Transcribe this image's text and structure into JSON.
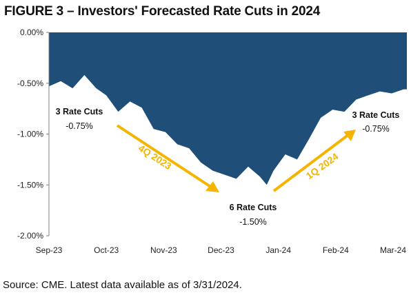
{
  "title": "FIGURE 3 – Investors' Forecasted Rate Cuts in 2024",
  "source": "Source: CME. Latest data available as of 3/31/2024.",
  "colors": {
    "area": "#1f4e79",
    "arrow": "#f4b400",
    "axis": "#808080"
  },
  "chart_data": {
    "type": "area",
    "title": "FIGURE 3 – Investors' Forecasted Rate Cuts in 2024",
    "xlabel": "",
    "ylabel": "",
    "ylim": [
      -2.0,
      0.0
    ],
    "y_ticks": [
      "0.00%",
      "-0.50%",
      "-1.00%",
      "-1.50%",
      "-2.00%"
    ],
    "x_ticks": [
      "Sep-23",
      "Oct-23",
      "Nov-23",
      "Dec-23",
      "Jan-24",
      "Feb-24",
      "Mar-24"
    ],
    "grid": false,
    "x_range": [
      "2023-09-01",
      "2024-03-31"
    ],
    "series": [
      {
        "values": [
          [
            "2023-09-01",
            -0.53
          ],
          [
            "2023-09-08",
            -0.48
          ],
          [
            "2023-09-15",
            -0.55
          ],
          [
            "2023-09-22",
            -0.42
          ],
          [
            "2023-09-29",
            -0.55
          ],
          [
            "2023-10-05",
            -0.62
          ],
          [
            "2023-10-12",
            -0.78
          ],
          [
            "2023-10-19",
            -0.68
          ],
          [
            "2023-10-26",
            -0.74
          ],
          [
            "2023-11-02",
            -0.95
          ],
          [
            "2023-11-09",
            -0.98
          ],
          [
            "2023-11-16",
            -1.1
          ],
          [
            "2023-11-23",
            -1.14
          ],
          [
            "2023-11-30",
            -1.28
          ],
          [
            "2023-12-07",
            -1.36
          ],
          [
            "2023-12-14",
            -1.4
          ],
          [
            "2023-12-21",
            -1.44
          ],
          [
            "2023-12-28",
            -1.32
          ],
          [
            "2024-01-04",
            -1.42
          ],
          [
            "2024-01-08",
            -1.5
          ],
          [
            "2024-01-12",
            -1.36
          ],
          [
            "2024-01-19",
            -1.2
          ],
          [
            "2024-01-26",
            -1.25
          ],
          [
            "2024-02-02",
            -1.05
          ],
          [
            "2024-02-09",
            -0.84
          ],
          [
            "2024-02-16",
            -0.76
          ],
          [
            "2024-02-23",
            -0.78
          ],
          [
            "2024-03-01",
            -0.66
          ],
          [
            "2024-03-08",
            -0.62
          ],
          [
            "2024-03-15",
            -0.58
          ],
          [
            "2024-03-22",
            -0.6
          ],
          [
            "2024-03-29",
            -0.56
          ]
        ]
      }
    ],
    "annotations": [
      {
        "label": "3 Rate Cuts",
        "value": "-0.75%"
      },
      {
        "label": "6 Rate Cuts",
        "value": "-1.50%"
      },
      {
        "label": "3 Rate Cuts",
        "value": "-0.75%"
      }
    ],
    "trend_labels": [
      "4Q 2023",
      "1Q 2024"
    ]
  }
}
